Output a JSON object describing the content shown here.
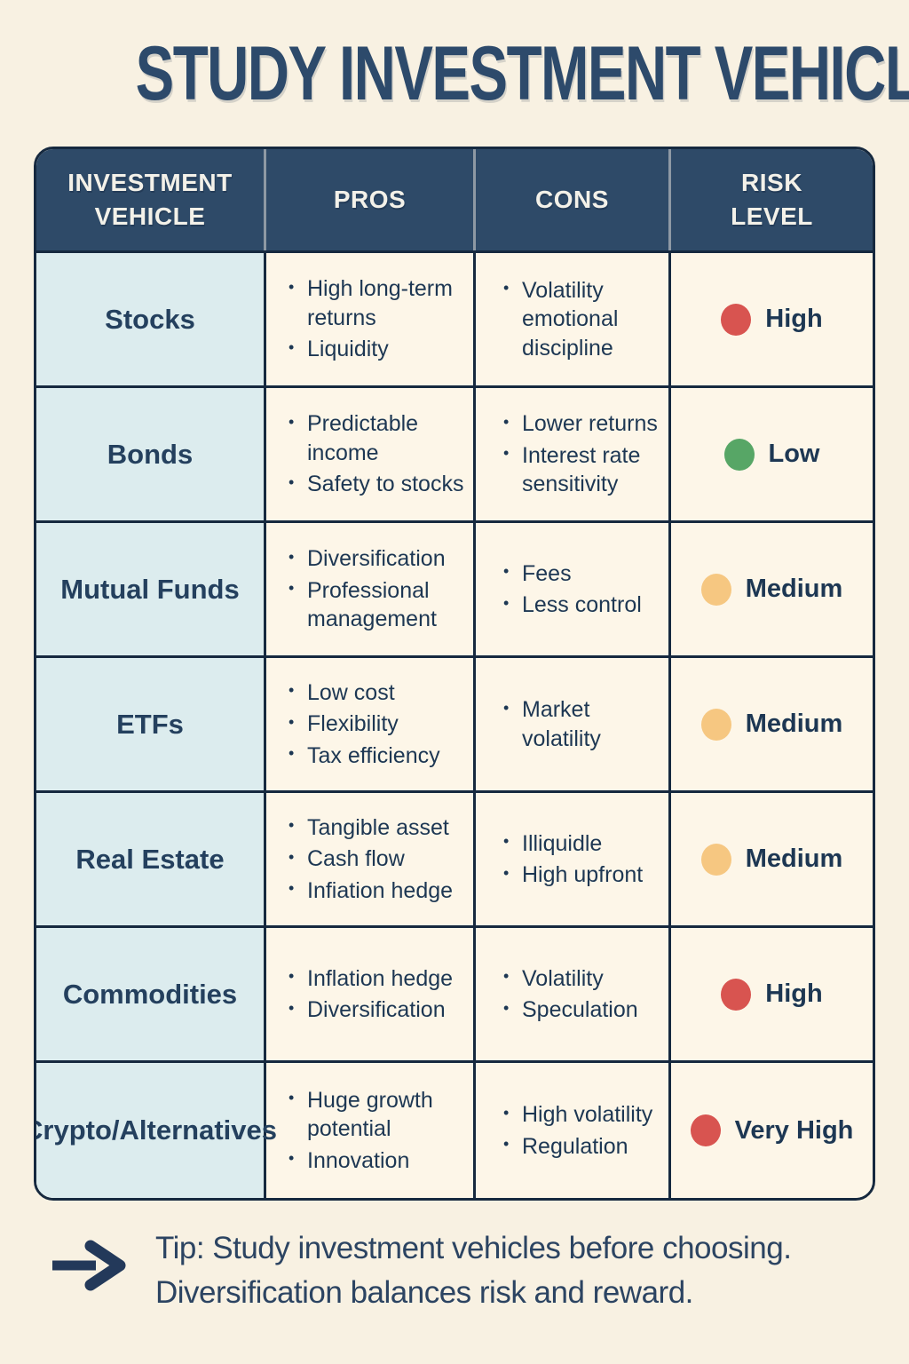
{
  "page": {
    "title": "STUDY INVESTMENT VEHICLES"
  },
  "table": {
    "headers": [
      "INVESTMENT\nVEHICLE",
      "PROS",
      "CONS",
      "RISK\nLEVEL"
    ],
    "rows": [
      {
        "vehicle": "Stocks",
        "pros": [
          "High long-term returns",
          "Liquidity"
        ],
        "cons": [
          "Volatility emotional discipline"
        ],
        "risk": {
          "label": "High",
          "level": "high"
        }
      },
      {
        "vehicle": "Bonds",
        "pros": [
          "Predictable income",
          "Safety to stocks"
        ],
        "cons": [
          "Lower returns",
          "Interest rate sensitivity"
        ],
        "risk": {
          "label": "Low",
          "level": "low"
        }
      },
      {
        "vehicle": "Mutual Funds",
        "pros": [
          "Diversification",
          "Professional management"
        ],
        "cons": [
          "Fees",
          "Less control"
        ],
        "risk": {
          "label": "Medium",
          "level": "medium"
        }
      },
      {
        "vehicle": "ETFs",
        "pros": [
          "Low cost",
          "Flexibility",
          "Tax efficiency"
        ],
        "cons": [
          "Market volatility"
        ],
        "risk": {
          "label": "Medium",
          "level": "medium"
        }
      },
      {
        "vehicle": "Real Estate",
        "pros": [
          "Tangible asset",
          "Cash flow",
          "Infiation hedge"
        ],
        "cons": [
          "Illiquidle",
          "High upfront"
        ],
        "risk": {
          "label": "Medium",
          "level": "medium"
        }
      },
      {
        "vehicle": "Commodities",
        "pros": [
          "Inflation hedge",
          "Diversification"
        ],
        "cons": [
          "Volatility",
          "Speculation"
        ],
        "risk": {
          "label": "High",
          "level": "high"
        }
      },
      {
        "vehicle": "Crypto/Alternatives",
        "pros": [
          "Huge growth potential",
          "Innovation"
        ],
        "cons": [
          "High volatility",
          "Regulation"
        ],
        "risk": {
          "label": "Very High",
          "level": "very-high"
        }
      }
    ]
  },
  "risk_colors": {
    "high": "#d85450",
    "low": "#57a666",
    "medium": "#f6c781",
    "very-high": "#d85450"
  },
  "tip": {
    "line1": "Tip: Study investment vehicles before choosing.",
    "line2": "Diversification balances risk and reward."
  },
  "icons": {
    "arrow": "right-arrow-icon"
  },
  "colors": {
    "background": "#f8f1e2",
    "header_bg": "#2e4a68",
    "border": "#16293f",
    "cell_bg": "#fdf6e8",
    "vehicle_cell_bg": "#dcecee",
    "text": "#1d3753",
    "title": "#2d4a6b"
  }
}
